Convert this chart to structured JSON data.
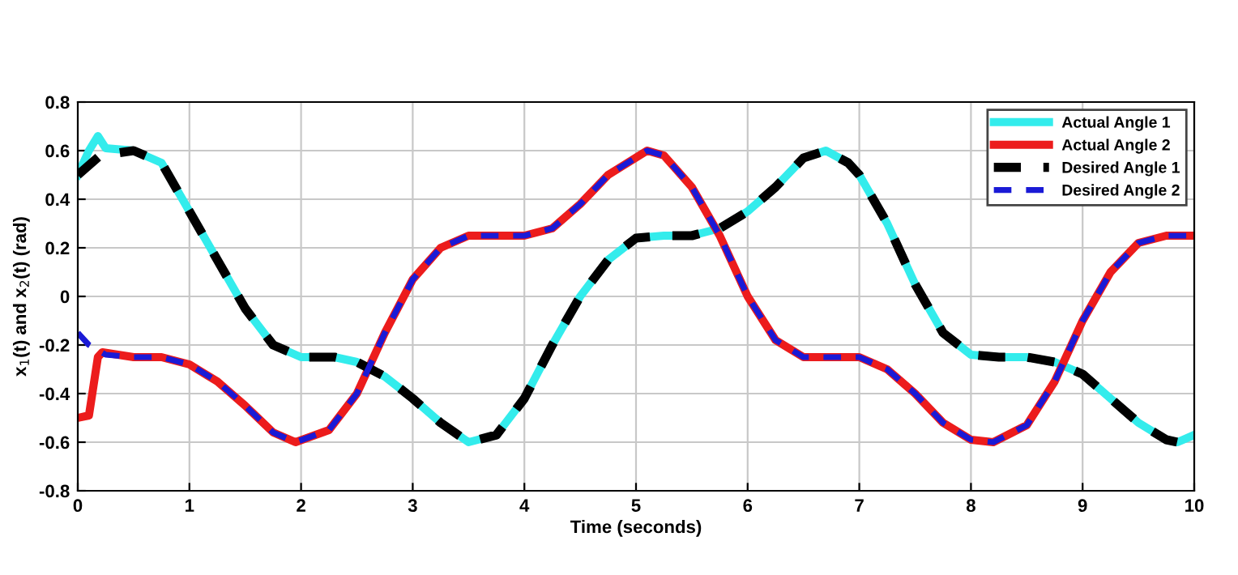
{
  "chart_data": {
    "type": "line",
    "xlabel": "Time (seconds)",
    "ylabel": "x$_{1}$(t) and x$_{2}$(t) (rad)",
    "xlim": [
      0,
      10
    ],
    "ylim": [
      -0.8,
      0.8
    ],
    "xticks": [
      0,
      1,
      2,
      3,
      4,
      5,
      6,
      7,
      8,
      9,
      10
    ],
    "yticks": [
      -0.8,
      -0.6,
      -0.4,
      -0.2,
      0,
      0.2,
      0.4,
      0.6,
      0.8
    ],
    "grid": true,
    "legend": "top right",
    "series": [
      {
        "name": "Actual Angle 1",
        "color": "#33ecec",
        "line_style": "solid",
        "x": [
          0,
          0.1,
          0.18,
          0.25,
          0.5,
          0.75,
          1.0,
          1.25,
          1.5,
          1.75,
          2.0,
          2.3,
          2.5,
          2.75,
          3.0,
          3.25,
          3.5,
          3.75,
          4.0,
          4.25,
          4.5,
          4.75,
          5.0,
          5.25,
          5.5,
          5.75,
          6.0,
          6.25,
          6.5,
          6.7,
          6.9,
          7.0,
          7.25,
          7.5,
          7.75,
          8.0,
          8.25,
          8.5,
          8.75,
          9.0,
          9.25,
          9.5,
          9.75,
          9.85,
          10
        ],
        "values": [
          0.5,
          0.6,
          0.66,
          0.61,
          0.6,
          0.55,
          0.35,
          0.15,
          -0.05,
          -0.2,
          -0.25,
          -0.25,
          -0.27,
          -0.33,
          -0.42,
          -0.52,
          -0.6,
          -0.57,
          -0.42,
          -0.2,
          0.0,
          0.15,
          0.24,
          0.25,
          0.25,
          0.28,
          0.35,
          0.45,
          0.57,
          0.6,
          0.55,
          0.5,
          0.3,
          0.05,
          -0.15,
          -0.24,
          -0.25,
          -0.25,
          -0.27,
          -0.32,
          -0.42,
          -0.52,
          -0.59,
          -0.6,
          -0.57
        ]
      },
      {
        "name": "Actual Angle 2",
        "color": "#ec1c1c",
        "line_style": "solid",
        "x": [
          0,
          0.1,
          0.18,
          0.22,
          0.5,
          0.75,
          1.0,
          1.25,
          1.5,
          1.75,
          1.95,
          2.25,
          2.5,
          2.75,
          3.0,
          3.25,
          3.5,
          4.0,
          4.25,
          4.5,
          4.75,
          5.1,
          5.25,
          5.5,
          5.75,
          6.0,
          6.25,
          6.5,
          7.0,
          7.25,
          7.5,
          7.75,
          8.0,
          8.2,
          8.5,
          8.75,
          9.0,
          9.25,
          9.5,
          9.75,
          10
        ],
        "values": [
          -0.5,
          -0.49,
          -0.25,
          -0.23,
          -0.25,
          -0.25,
          -0.28,
          -0.35,
          -0.45,
          -0.56,
          -0.6,
          -0.55,
          -0.4,
          -0.15,
          0.07,
          0.2,
          0.25,
          0.25,
          0.28,
          0.38,
          0.5,
          0.6,
          0.58,
          0.45,
          0.25,
          0.0,
          -0.18,
          -0.25,
          -0.25,
          -0.3,
          -0.4,
          -0.52,
          -0.59,
          -0.6,
          -0.53,
          -0.35,
          -0.1,
          0.1,
          0.22,
          0.25,
          0.25
        ]
      },
      {
        "name": "Desired Angle 1",
        "color": "#000000",
        "line_style": "dashed",
        "x": [
          0,
          0.2,
          0.5,
          0.75,
          1.0,
          1.25,
          1.5,
          1.75,
          2.0,
          2.3,
          2.5,
          2.75,
          3.0,
          3.25,
          3.5,
          3.75,
          4.0,
          4.25,
          4.5,
          4.75,
          5.0,
          5.25,
          5.5,
          5.75,
          6.0,
          6.25,
          6.5,
          6.7,
          6.9,
          7.0,
          7.25,
          7.5,
          7.75,
          8.0,
          8.25,
          8.5,
          8.75,
          9.0,
          9.25,
          9.5,
          9.75,
          9.85,
          10
        ],
        "values": [
          0.5,
          0.58,
          0.6,
          0.55,
          0.35,
          0.15,
          -0.05,
          -0.2,
          -0.25,
          -0.25,
          -0.27,
          -0.33,
          -0.42,
          -0.52,
          -0.6,
          -0.57,
          -0.42,
          -0.2,
          0.0,
          0.15,
          0.24,
          0.25,
          0.25,
          0.28,
          0.35,
          0.45,
          0.57,
          0.6,
          0.55,
          0.5,
          0.3,
          0.05,
          -0.15,
          -0.24,
          -0.25,
          -0.25,
          -0.27,
          -0.32,
          -0.42,
          -0.52,
          -0.59,
          -0.6,
          -0.57
        ]
      },
      {
        "name": "Desired Angle 2",
        "color": "#1a1ad6",
        "line_style": "dashed",
        "x": [
          0,
          0.1,
          0.25,
          0.5,
          0.75,
          1.0,
          1.25,
          1.5,
          1.75,
          1.95,
          2.25,
          2.5,
          2.75,
          3.0,
          3.25,
          3.5,
          4.0,
          4.25,
          4.5,
          4.75,
          5.1,
          5.25,
          5.5,
          5.75,
          6.0,
          6.25,
          6.5,
          7.0,
          7.25,
          7.5,
          7.75,
          8.0,
          8.2,
          8.5,
          8.75,
          9.0,
          9.25,
          9.5,
          9.75,
          10
        ],
        "values": [
          -0.15,
          -0.2,
          -0.24,
          -0.25,
          -0.25,
          -0.28,
          -0.35,
          -0.45,
          -0.56,
          -0.6,
          -0.55,
          -0.4,
          -0.15,
          0.07,
          0.2,
          0.25,
          0.25,
          0.28,
          0.38,
          0.5,
          0.6,
          0.58,
          0.45,
          0.25,
          0.0,
          -0.18,
          -0.25,
          -0.25,
          -0.3,
          -0.4,
          -0.52,
          -0.59,
          -0.6,
          -0.53,
          -0.35,
          -0.1,
          0.1,
          0.22,
          0.25,
          0.25
        ]
      }
    ]
  }
}
